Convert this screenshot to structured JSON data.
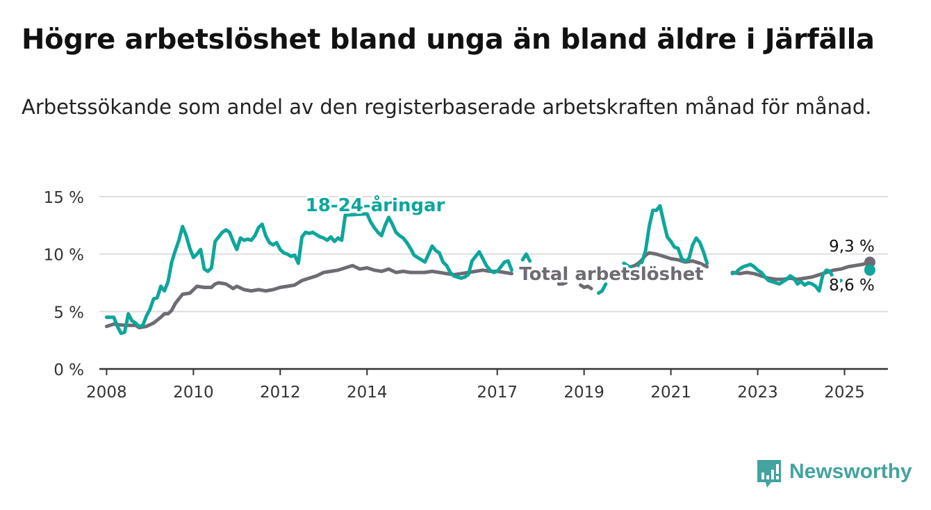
{
  "header": {
    "title": "Högre arbetslöshet bland unga än bland äldre i Järfälla",
    "subtitle": "Arbetssökande som andel av den registerbaserade arbetskraften månad för månad."
  },
  "brand": {
    "name": "Newsworthy",
    "color": "#43a39f",
    "icon": "bar-chart-icon"
  },
  "colors": {
    "youth": "#0da69b",
    "total": "#6e6b73",
    "grid": "#dddddd",
    "axis": "#333333"
  },
  "chart_data": {
    "type": "line",
    "title": "",
    "xlabel": "",
    "ylabel": "",
    "ylim": [
      0,
      15
    ],
    "xlim": [
      "2007-11",
      "2026-01"
    ],
    "y_ticks": [
      0,
      5,
      10,
      15
    ],
    "y_tick_labels": [
      "0 %",
      "5 %",
      "10 %",
      "15 %"
    ],
    "x_ticks": [
      "2008-01",
      "2010-01",
      "2012-01",
      "2014-01",
      "2017-01",
      "2019-01",
      "2021-01",
      "2023-01",
      "2025-01"
    ],
    "x_tick_labels": [
      "2008",
      "2010",
      "2012",
      "2014",
      "2017",
      "2019",
      "2021",
      "2023",
      "2025"
    ],
    "grid": true,
    "legend": "inline labels",
    "series": [
      {
        "name": "18-24-åringar",
        "color": "#0da69b",
        "end_label": "8,6 %",
        "points": [
          [
            "2008-01",
            4.5
          ],
          [
            "2008-03",
            4.5
          ],
          [
            "2008-04",
            3.7
          ],
          [
            "2008-05",
            3.1
          ],
          [
            "2008-06",
            3.2
          ],
          [
            "2008-07",
            4.8
          ],
          [
            "2008-08",
            4.2
          ],
          [
            "2008-09",
            4.0
          ],
          [
            "2008-10",
            3.7
          ],
          [
            "2008-11",
            3.8
          ],
          [
            "2008-12",
            4.6
          ],
          [
            "2009-01",
            5.2
          ],
          [
            "2009-02",
            6.1
          ],
          [
            "2009-03",
            6.2
          ],
          [
            "2009-04",
            7.2
          ],
          [
            "2009-05",
            6.8
          ],
          [
            "2009-06",
            7.6
          ],
          [
            "2009-07",
            9.3
          ],
          [
            "2009-08",
            10.3
          ],
          [
            "2009-09",
            11.2
          ],
          [
            "2009-10",
            12.4
          ],
          [
            "2009-11",
            11.6
          ],
          [
            "2009-12",
            10.5
          ],
          [
            "2010-01",
            9.7
          ],
          [
            "2010-02",
            10.0
          ],
          [
            "2010-03",
            10.4
          ],
          [
            "2010-04",
            8.7
          ],
          [
            "2010-05",
            8.5
          ],
          [
            "2010-06",
            8.8
          ],
          [
            "2010-07",
            11.1
          ],
          [
            "2010-08",
            11.5
          ],
          [
            "2010-09",
            11.9
          ],
          [
            "2010-10",
            12.1
          ],
          [
            "2010-11",
            11.9
          ],
          [
            "2010-12",
            11.1
          ],
          [
            "2011-01",
            10.4
          ],
          [
            "2011-02",
            11.4
          ],
          [
            "2011-03",
            11.2
          ],
          [
            "2011-04",
            11.3
          ],
          [
            "2011-05",
            11.2
          ],
          [
            "2011-06",
            11.6
          ],
          [
            "2011-07",
            12.3
          ],
          [
            "2011-08",
            12.6
          ],
          [
            "2011-09",
            11.6
          ],
          [
            "2011-10",
            11.0
          ],
          [
            "2011-11",
            10.8
          ],
          [
            "2011-12",
            11.0
          ],
          [
            "2012-01",
            10.4
          ],
          [
            "2012-02",
            10.1
          ],
          [
            "2012-03",
            10.0
          ],
          [
            "2012-04",
            9.8
          ],
          [
            "2012-05",
            9.9
          ],
          [
            "2012-06",
            9.2
          ],
          [
            "2012-07",
            11.5
          ],
          [
            "2012-08",
            11.9
          ],
          [
            "2012-09",
            11.8
          ],
          [
            "2012-10",
            11.9
          ],
          [
            "2012-11",
            11.7
          ],
          [
            "2012-12",
            11.5
          ],
          [
            "2013-01",
            11.4
          ],
          [
            "2013-02",
            11.2
          ],
          [
            "2013-03",
            11.5
          ],
          [
            "2013-04",
            11.1
          ],
          [
            "2013-05",
            11.4
          ],
          [
            "2013-06",
            11.2
          ],
          [
            "2013-07",
            13.4
          ],
          [
            "2014-01",
            13.5
          ],
          [
            "2014-02",
            12.8
          ],
          [
            "2014-03",
            12.3
          ],
          [
            "2014-04",
            11.9
          ],
          [
            "2014-05",
            11.6
          ],
          [
            "2014-06",
            12.5
          ],
          [
            "2014-07",
            13.2
          ],
          [
            "2014-08",
            12.6
          ],
          [
            "2014-09",
            11.9
          ],
          [
            "2014-10",
            11.6
          ],
          [
            "2014-11",
            11.4
          ],
          [
            "2014-12",
            11.0
          ],
          [
            "2015-01",
            10.5
          ],
          [
            "2015-02",
            9.9
          ],
          [
            "2015-03",
            9.7
          ],
          [
            "2015-04",
            9.5
          ],
          [
            "2015-05",
            9.3
          ],
          [
            "2015-06",
            10.0
          ],
          [
            "2015-07",
            10.7
          ],
          [
            "2015-08",
            10.3
          ],
          [
            "2015-09",
            10.1
          ],
          [
            "2015-10",
            9.3
          ],
          [
            "2015-11",
            9.0
          ],
          [
            "2015-12",
            8.4
          ],
          [
            "2016-01",
            8.1
          ],
          [
            "2016-02",
            8.0
          ],
          [
            "2016-03",
            7.9
          ],
          [
            "2016-04",
            8.0
          ],
          [
            "2016-05",
            8.2
          ],
          [
            "2016-06",
            9.4
          ],
          [
            "2016-07",
            9.8
          ],
          [
            "2016-08",
            10.2
          ],
          [
            "2016-09",
            9.6
          ],
          [
            "2016-10",
            9.0
          ],
          [
            "2016-11",
            8.6
          ],
          [
            "2016-12",
            8.4
          ],
          [
            "2017-01",
            8.5
          ],
          [
            "2017-02",
            8.9
          ],
          [
            "2017-03",
            9.3
          ],
          [
            "2017-04",
            9.4
          ],
          [
            "2017-05",
            8.6
          ]
        ],
        "points_2": [
          [
            "2017-08",
            9.5
          ],
          [
            "2017-09",
            10.0
          ],
          [
            "2017-10",
            9.4
          ]
        ],
        "points_3": [
          [
            "2019-05",
            6.6
          ],
          [
            "2019-06",
            6.8
          ],
          [
            "2019-07",
            7.4
          ]
        ],
        "points_4": [
          [
            "2019-12",
            9.2
          ],
          [
            "2020-01",
            9.0
          ],
          [
            "2020-02",
            8.8
          ]
        ],
        "points_5": [
          [
            "2020-04",
            9.0
          ],
          [
            "2020-05",
            9.3
          ],
          [
            "2020-06",
            10.3
          ],
          [
            "2020-07",
            12.4
          ],
          [
            "2020-08",
            13.8
          ],
          [
            "2020-09",
            13.8
          ],
          [
            "2020-10",
            14.2
          ],
          [
            "2020-11",
            12.8
          ],
          [
            "2020-12",
            11.5
          ],
          [
            "2021-01",
            11.1
          ],
          [
            "2021-02",
            10.6
          ],
          [
            "2021-03",
            10.5
          ],
          [
            "2021-04",
            9.6
          ],
          [
            "2021-05",
            9.4
          ],
          [
            "2021-06",
            9.6
          ],
          [
            "2021-07",
            10.8
          ],
          [
            "2021-08",
            11.4
          ],
          [
            "2021-09",
            11.0
          ],
          [
            "2021-10",
            10.2
          ],
          [
            "2021-11",
            9.2
          ]
        ],
        "points_6": [
          [
            "2022-06",
            8.3
          ],
          [
            "2022-07",
            8.4
          ],
          [
            "2022-08",
            8.7
          ],
          [
            "2022-09",
            8.9
          ],
          [
            "2022-10",
            9.0
          ],
          [
            "2022-11",
            9.1
          ],
          [
            "2022-12",
            8.9
          ],
          [
            "2023-01",
            8.6
          ],
          [
            "2023-02",
            8.4
          ],
          [
            "2023-03",
            8.0
          ],
          [
            "2023-04",
            7.7
          ],
          [
            "2023-05",
            7.6
          ],
          [
            "2023-06",
            7.5
          ],
          [
            "2023-07",
            7.4
          ],
          [
            "2023-08",
            7.6
          ],
          [
            "2023-09",
            7.8
          ],
          [
            "2023-10",
            8.1
          ],
          [
            "2023-11",
            7.9
          ],
          [
            "2023-12",
            7.4
          ],
          [
            "2024-01",
            7.6
          ],
          [
            "2024-02",
            7.3
          ],
          [
            "2024-03",
            7.5
          ],
          [
            "2024-04",
            7.4
          ],
          [
            "2024-05",
            7.2
          ],
          [
            "2024-06",
            6.8
          ],
          [
            "2024-07",
            8.2
          ],
          [
            "2024-08",
            8.6
          ],
          [
            "2024-09",
            8.5
          ],
          [
            "2024-10",
            7.8
          ],
          [
            "2024-11",
            7.5
          ],
          [
            "2024-12",
            7.7
          ]
        ],
        "points_7": [
          [
            "2025-07",
            8.8
          ],
          [
            "2025-08",
            8.6
          ]
        ]
      },
      {
        "name": "Total arbetslöshet",
        "color": "#6e6b73",
        "end_label": "9,3 %",
        "points": [
          [
            "2008-01",
            3.7
          ],
          [
            "2008-03",
            3.9
          ],
          [
            "2008-06",
            3.8
          ],
          [
            "2008-09",
            3.8
          ],
          [
            "2008-10",
            3.6
          ],
          [
            "2008-12",
            3.7
          ],
          [
            "2009-02",
            4.0
          ],
          [
            "2009-04",
            4.5
          ],
          [
            "2009-05",
            4.8
          ],
          [
            "2009-06",
            4.8
          ],
          [
            "2009-07",
            5.1
          ],
          [
            "2009-08",
            5.7
          ],
          [
            "2009-09",
            6.1
          ],
          [
            "2009-10",
            6.5
          ],
          [
            "2009-12",
            6.6
          ],
          [
            "2010-01",
            6.9
          ],
          [
            "2010-02",
            7.2
          ],
          [
            "2010-04",
            7.1
          ],
          [
            "2010-06",
            7.1
          ],
          [
            "2010-07",
            7.4
          ],
          [
            "2010-08",
            7.5
          ],
          [
            "2010-10",
            7.4
          ],
          [
            "2010-12",
            7.0
          ],
          [
            "2011-01",
            7.2
          ],
          [
            "2011-03",
            6.9
          ],
          [
            "2011-05",
            6.8
          ],
          [
            "2011-07",
            6.9
          ],
          [
            "2011-09",
            6.8
          ],
          [
            "2011-11",
            6.9
          ],
          [
            "2012-01",
            7.1
          ],
          [
            "2012-03",
            7.2
          ],
          [
            "2012-05",
            7.3
          ],
          [
            "2012-07",
            7.7
          ],
          [
            "2012-09",
            7.9
          ],
          [
            "2012-11",
            8.1
          ],
          [
            "2013-01",
            8.4
          ],
          [
            "2013-03",
            8.5
          ],
          [
            "2013-05",
            8.6
          ],
          [
            "2013-07",
            8.8
          ],
          [
            "2013-09",
            9.0
          ],
          [
            "2013-11",
            8.7
          ],
          [
            "2014-01",
            8.8
          ],
          [
            "2014-03",
            8.6
          ],
          [
            "2014-05",
            8.5
          ],
          [
            "2014-07",
            8.7
          ],
          [
            "2014-09",
            8.4
          ],
          [
            "2014-11",
            8.5
          ],
          [
            "2015-01",
            8.4
          ],
          [
            "2015-03",
            8.4
          ],
          [
            "2015-05",
            8.4
          ],
          [
            "2015-07",
            8.5
          ],
          [
            "2015-09",
            8.4
          ],
          [
            "2015-11",
            8.3
          ],
          [
            "2016-01",
            8.2
          ],
          [
            "2016-03",
            8.3
          ],
          [
            "2016-05",
            8.4
          ],
          [
            "2016-07",
            8.5
          ],
          [
            "2016-09",
            8.6
          ],
          [
            "2016-11",
            8.5
          ],
          [
            "2017-01",
            8.5
          ],
          [
            "2017-03",
            8.4
          ],
          [
            "2017-05",
            8.3
          ]
        ],
        "points_2": [
          [
            "2018-06",
            7.4
          ],
          [
            "2018-07",
            7.4
          ],
          [
            "2018-08",
            7.5
          ]
        ],
        "points_3": [
          [
            "2018-12",
            7.3
          ],
          [
            "2019-01",
            7.1
          ],
          [
            "2019-02",
            7.2
          ],
          [
            "2019-03",
            7.0
          ]
        ],
        "points_4": [
          [
            "2020-02",
            8.9
          ],
          [
            "2020-03",
            9.0
          ],
          [
            "2020-04",
            9.2
          ],
          [
            "2020-05",
            9.5
          ],
          [
            "2020-06",
            9.9
          ],
          [
            "2020-07",
            10.1
          ],
          [
            "2020-09",
            10.0
          ],
          [
            "2020-11",
            9.8
          ],
          [
            "2021-01",
            9.6
          ],
          [
            "2021-03",
            9.5
          ],
          [
            "2021-05",
            9.3
          ],
          [
            "2021-07",
            9.4
          ],
          [
            "2021-09",
            9.2
          ],
          [
            "2021-11",
            8.9
          ]
        ],
        "points_5": [
          [
            "2022-06",
            8.4
          ],
          [
            "2022-08",
            8.3
          ],
          [
            "2022-10",
            8.4
          ],
          [
            "2022-12",
            8.3
          ],
          [
            "2023-02",
            8.1
          ],
          [
            "2023-04",
            7.9
          ],
          [
            "2023-06",
            7.8
          ],
          [
            "2023-08",
            7.8
          ],
          [
            "2023-10",
            7.9
          ],
          [
            "2023-12",
            7.8
          ],
          [
            "2024-02",
            7.9
          ],
          [
            "2024-04",
            8.0
          ],
          [
            "2024-06",
            8.2
          ],
          [
            "2024-08",
            8.4
          ],
          [
            "2024-10",
            8.6
          ],
          [
            "2024-12",
            8.7
          ],
          [
            "2025-02",
            8.9
          ],
          [
            "2025-04",
            9.0
          ],
          [
            "2025-06",
            9.1
          ],
          [
            "2025-08",
            9.3
          ]
        ]
      }
    ],
    "annotations": [
      {
        "text": "18-24-åringar",
        "series": "18-24-åringar"
      },
      {
        "text": "Total arbetslöshet",
        "series": "Total arbetslöshet"
      }
    ]
  }
}
